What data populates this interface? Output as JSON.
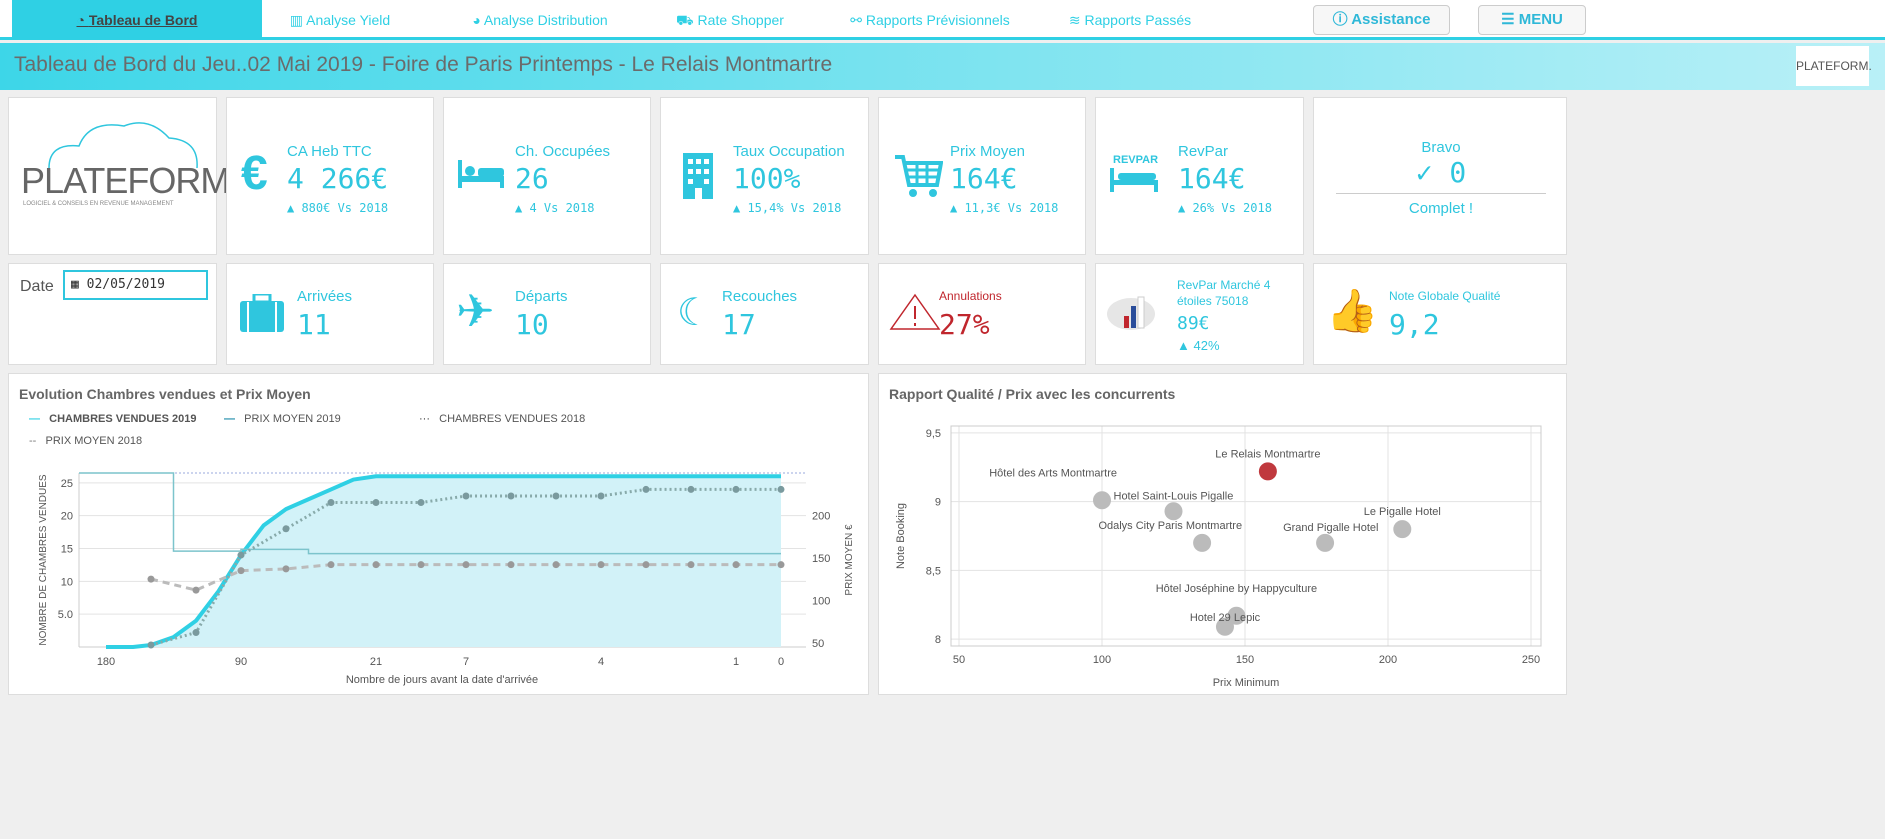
{
  "nav": {
    "tabs": [
      "Tableau de Bord",
      "Analyse Yield",
      "Analyse Distribution",
      "Rate Shopper",
      "Rapports Prévisionnels",
      "Rapports Passés"
    ],
    "assistance": "Assistance",
    "menu": "MENU"
  },
  "header": {
    "title": "Tableau de Bord du Jeu..02 Mai 2019 - Foire de Paris Printemps - Le Relais Montmartre",
    "logo": "PLATEFORM."
  },
  "logo": {
    "name": "PLATEFORM.",
    "tagline": "LOGICIEL & CONSEILS EN REVENUE MANAGEMENT"
  },
  "kpis": [
    {
      "label": "CA Heb TTC",
      "value": "4 266€",
      "delta": "▲ 880€ Vs 2018",
      "icon": "euro-icon"
    },
    {
      "label": "Ch. Occupées",
      "value": "26",
      "delta": "▲ 4 Vs 2018",
      "icon": "bed-icon"
    },
    {
      "label": "Taux Occupation",
      "value": "100%",
      "delta": "▲ 15,4% Vs 2018",
      "icon": "building-icon"
    },
    {
      "label": "Prix Moyen",
      "value": "164€",
      "delta": "▲ 11,3€ Vs 2018",
      "icon": "cart-icon"
    },
    {
      "label": "RevPar",
      "value": "164€",
      "delta": "▲ 26% Vs 2018",
      "icon": "revpar-bed-icon",
      "icon_text": "REVPAR"
    }
  ],
  "bravo": {
    "label": "Bravo",
    "value": "✓ 0",
    "status": "Complet !"
  },
  "date": {
    "label": "Date",
    "value": "02/05/2019"
  },
  "row2": [
    {
      "label": "Arrivées",
      "value": "11"
    },
    {
      "label": "Départs",
      "value": "10"
    },
    {
      "label": "Recouches",
      "value": "17"
    },
    {
      "label": "Annulations",
      "value": "27%"
    },
    {
      "label": "RevPar Marché 4 étoiles 75018",
      "value": "89€",
      "delta": "▲ 42%"
    },
    {
      "label": "Note Globale Qualité",
      "value": "9,2"
    }
  ],
  "colors": {
    "accent": "#2fd0e4",
    "alert": "#c0262d"
  },
  "chart_data": [
    {
      "type": "line",
      "title": "Evolution Chambres vendues et Prix Moyen",
      "legend": [
        "CHAMBRES VENDUES 2019",
        "PRIX MOYEN 2019",
        "CHAMBRES VENDUES 2018",
        "PRIX MOYEN 2018"
      ],
      "xlabel": "Nombre de jours avant la date d'arrivée",
      "ylabel": "NOMBRE DE CHAMBRES VENDUES",
      "y2label": "PRIX MOYEN €",
      "x_ticks": [
        {
          "label": "180",
          "i": 0
        },
        {
          "label": "90",
          "i": 3
        },
        {
          "label": "21",
          "i": 6
        },
        {
          "label": "7",
          "i": 8
        },
        {
          "label": "4",
          "i": 11
        },
        {
          "label": "1",
          "i": 14
        },
        {
          "label": "0",
          "i": 15
        }
      ],
      "y_ticks": [
        "5.0",
        "10",
        "15",
        "20",
        "25"
      ],
      "y_tick_values": [
        5,
        10,
        15,
        20,
        25
      ],
      "ylim": [
        0,
        26.5
      ],
      "y2_ticks": [
        "50",
        "100",
        "150",
        "200"
      ],
      "y2_tick_values": [
        50,
        100,
        150,
        200
      ],
      "y2lim": [
        45,
        250
      ],
      "series": [
        {
          "name": "CHAMBRES VENDUES 2019",
          "axis": "left",
          "x": [
            0,
            0.6,
            1,
            1.5,
            2,
            2.5,
            3,
            3.5,
            4,
            4.5,
            5,
            5.5,
            6,
            15
          ],
          "values": [
            0,
            0,
            0.3,
            1.5,
            4,
            8.5,
            14,
            18.5,
            21,
            22.5,
            24,
            25.5,
            26,
            26
          ]
        },
        {
          "name": "PRIX MOYEN 2019",
          "axis": "right",
          "x": [
            -0.6,
            1.5,
            1.5,
            3,
            3,
            4.5,
            4.5,
            15
          ],
          "values": [
            250,
            250,
            158,
            158,
            160,
            160,
            155,
            155
          ]
        },
        {
          "name": "CHAMBRES VENDUES 2018",
          "axis": "left",
          "x": [
            1,
            2,
            3,
            4,
            5,
            6,
            7,
            8,
            9,
            10,
            11,
            12,
            13,
            14,
            15
          ],
          "values": [
            0.3,
            2.2,
            14,
            18,
            22,
            22,
            22,
            23,
            23,
            23,
            23,
            24,
            24,
            24,
            24
          ]
        },
        {
          "name": "PRIX MOYEN 2018",
          "axis": "right",
          "x": [
            1,
            2,
            3,
            4,
            5,
            6,
            7,
            8,
            9,
            10,
            11,
            12,
            13,
            14,
            15
          ],
          "values": [
            125,
            112,
            135,
            137,
            142,
            142,
            142,
            142,
            142,
            142,
            142,
            142,
            142,
            142,
            142
          ]
        }
      ]
    },
    {
      "type": "scatter",
      "title": "Rapport Qualité / Prix avec les concurrents",
      "xlabel": "Prix Minimum",
      "ylabel": "Note Booking",
      "xlim": [
        50,
        250
      ],
      "ylim": [
        7.95,
        9.55
      ],
      "x_ticks": [
        "50",
        "100",
        "150",
        "200",
        "250"
      ],
      "y_ticks": [
        "8",
        "8,5",
        "9",
        "9,5"
      ],
      "points": [
        {
          "label": "Le Relais Montmartre",
          "x": 158,
          "y": 9.22,
          "highlight": true
        },
        {
          "label": "Hôtel des Arts Montmartre",
          "x": 100,
          "y": 9.01
        },
        {
          "label": "Hotel Saint-Louis Pigalle",
          "x": 125,
          "y": 8.93
        },
        {
          "label": "Le Pigalle Hotel",
          "x": 205,
          "y": 8.8
        },
        {
          "label": "Odalys City Paris Montmartre",
          "x": 135,
          "y": 8.7
        },
        {
          "label": "Grand Pigalle Hotel",
          "x": 178,
          "y": 8.7
        },
        {
          "label": "Hôtel Joséphine by Happyculture",
          "x": 147,
          "y": 8.17
        },
        {
          "label": "Hotel 29 Lepic",
          "x": 143,
          "y": 8.09
        }
      ]
    }
  ]
}
